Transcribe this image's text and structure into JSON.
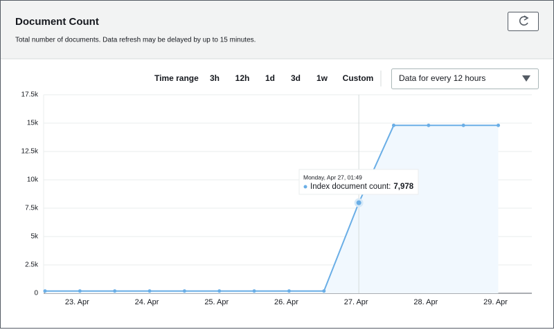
{
  "header": {
    "title": "Document Count",
    "subtitle": "Total number of documents. Data refresh may be delayed by up to 15 minutes."
  },
  "controls": {
    "time_range_label": "Time range",
    "ranges": [
      "3h",
      "12h",
      "1d",
      "3d",
      "1w",
      "Custom"
    ],
    "active_range": "1w",
    "active_color": "#0073bb",
    "interval": "Data for every 12 hours"
  },
  "chart_data": {
    "type": "line",
    "categories": [
      null,
      "23. Apr",
      null,
      "24. Apr",
      null,
      "25. Apr",
      null,
      "26. Apr",
      null,
      "27. Apr",
      null,
      "28. Apr",
      null,
      "29. Apr"
    ],
    "series": [
      {
        "name": "Index document count:",
        "color": "#6aaee6",
        "values": [
          200,
          200,
          200,
          200,
          200,
          200,
          200,
          200,
          200,
          7978,
          14800,
          14800,
          14800,
          14800
        ]
      }
    ],
    "ylim": [
      0,
      17500
    ],
    "yticks": [
      0,
      {
        "value": 2500,
        "label": "2.5k"
      },
      {
        "value": 5000,
        "label": "5k"
      },
      {
        "value": 7500,
        "label": "7.5k"
      },
      {
        "value": 10000,
        "label": "10k"
      },
      {
        "value": 12500,
        "label": "12.5k"
      },
      {
        "value": 15000,
        "label": "15k"
      },
      {
        "value": 17500,
        "label": "17.5k"
      }
    ],
    "grid": true,
    "tooltip": {
      "time": "Monday, Apr 27, 01:49",
      "value_label": "7,978",
      "index": 9
    }
  }
}
